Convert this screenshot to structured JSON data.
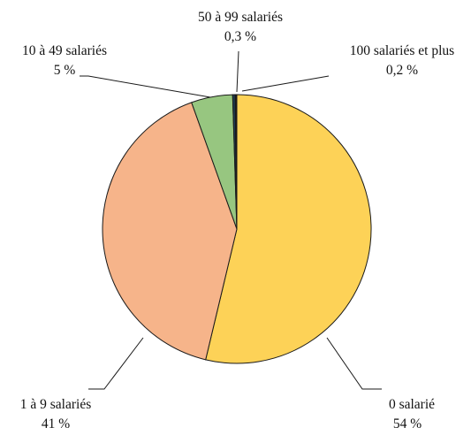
{
  "chart_data": {
    "type": "pie",
    "slices": [
      {
        "label": "0 salarié",
        "value": 54,
        "value_label": "54 %",
        "color": "#FDD257"
      },
      {
        "label": "1 à 9 salariés",
        "value": 41,
        "value_label": "41 %",
        "color": "#F6B48A"
      },
      {
        "label": "10 à 49 salariés",
        "value": 5,
        "value_label": "5 %",
        "color": "#97C680"
      },
      {
        "label": "50 à 99 salariés",
        "value": 0.3,
        "value_label": "0,3 %",
        "color": "#1F3F56"
      },
      {
        "label": "100 salariés et plus",
        "value": 0.2,
        "value_label": "0,2 %",
        "color": "#1C1C1C"
      }
    ]
  }
}
